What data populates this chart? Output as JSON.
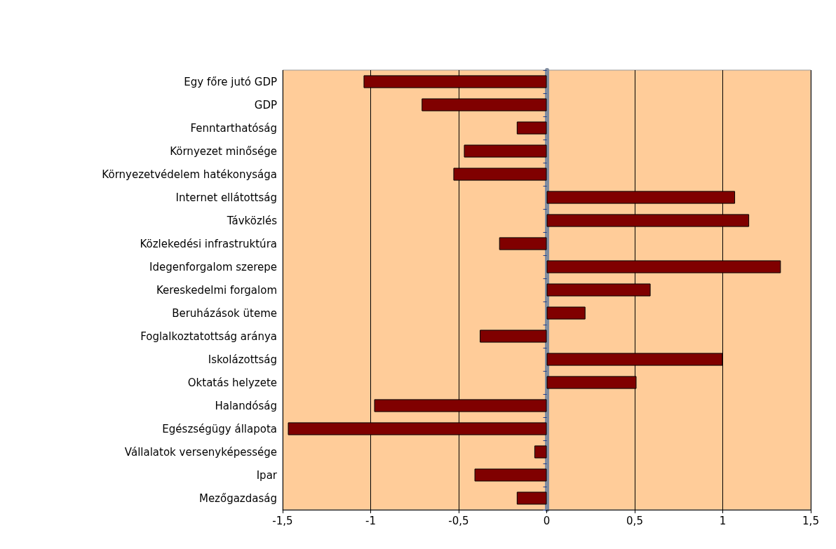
{
  "chart_data": {
    "type": "bar",
    "orientation": "horizontal",
    "categories": [
      "Egy főre jutó GDP",
      "GDP",
      "Fenntarthatóság",
      "Környezet minősége",
      "Környezetvédelem hatékonysága",
      "Internet ellátottság",
      "Távközlés",
      "Közlekedési infrastruktúra",
      "Idegenforgalom szerepe",
      "Kereskedelmi forgalom",
      "Beruházások üteme",
      "Foglalkoztatottság aránya",
      "Iskolázottság",
      "Oktatás helyzete",
      "Halandóság",
      "Egészségügy állapota",
      "Vállalatok versenyképessége",
      "Ipar",
      "Mezőgazdaság"
    ],
    "values": [
      -1.04,
      -0.71,
      -0.17,
      -0.47,
      -0.53,
      1.07,
      1.15,
      -0.27,
      1.33,
      0.59,
      0.22,
      -0.38,
      1.0,
      0.51,
      -0.98,
      -1.47,
      -0.07,
      -0.41,
      -0.17
    ],
    "color": "#800000",
    "xlim": [
      -1.5,
      1.5
    ],
    "xticks": [
      {
        "value": -1.5,
        "label": "-1,5"
      },
      -1,
      {
        "value": -0.5,
        "label": "-0,5"
      },
      0,
      {
        "value": 0.5,
        "label": "0,5"
      },
      1,
      {
        "value": 1.5,
        "label": "1,5"
      }
    ],
    "grid": "x"
  }
}
